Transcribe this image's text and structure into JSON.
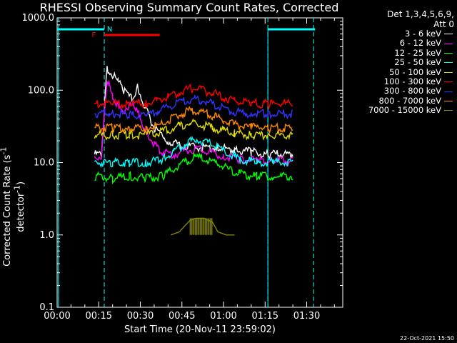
{
  "chart_data": {
    "type": "line",
    "title": "RHESSI Observing Summary Count Rates, Corrected",
    "detector_note": [
      "Det 1,3,4,5,6,9,",
      "Att 0"
    ],
    "xlabel": "Start Time (20-Nov-11 23:59:02)",
    "ylabel": "Corrected Count Rate (s",
    "ylabel_sup": "-1",
    "ylabel_tail": " detector",
    "ylabel_sup2": "-1",
    "ylabel_end": ")",
    "y_scale": "log",
    "ylim": [
      0.1,
      1000
    ],
    "xlim_minutes": [
      0,
      103
    ],
    "x_ticks": [
      {
        "min": 0,
        "label": "00:00"
      },
      {
        "min": 15,
        "label": "00:15"
      },
      {
        "min": 30,
        "label": "00:30"
      },
      {
        "min": 45,
        "label": "00:45"
      },
      {
        "min": 60,
        "label": "01:00"
      },
      {
        "min": 75,
        "label": "01:15"
      },
      {
        "min": 90,
        "label": "01:30"
      }
    ],
    "y_ticks": [
      {
        "v": 0.1,
        "label": "0.1"
      },
      {
        "v": 1,
        "label": "1.0"
      },
      {
        "v": 10,
        "label": "10.0"
      },
      {
        "v": 100,
        "label": "100.0"
      },
      {
        "v": 1000,
        "label": "1000.0"
      }
    ],
    "series": [
      {
        "name": "3 - 6 keV",
        "color": "#ffffff",
        "points": [
          [
            13.5,
            13
          ],
          [
            16,
            13
          ],
          [
            18,
            200
          ],
          [
            22,
            130
          ],
          [
            24,
            100
          ],
          [
            27,
            75
          ],
          [
            29,
            110
          ],
          [
            32,
            55
          ],
          [
            35,
            30
          ],
          [
            40,
            20
          ],
          [
            44,
            17
          ],
          [
            48,
            16.5
          ],
          [
            52,
            16
          ],
          [
            58,
            16
          ],
          [
            64,
            15
          ],
          [
            70,
            14
          ],
          [
            76,
            13
          ],
          [
            85,
            13
          ]
        ]
      },
      {
        "name": "6 - 12 keV",
        "color": "#ff00ff",
        "points": [
          [
            13.5,
            12
          ],
          [
            16,
            12
          ],
          [
            18,
            140
          ],
          [
            20,
            80
          ],
          [
            23,
            50
          ],
          [
            26,
            60
          ],
          [
            28,
            58
          ],
          [
            30,
            40
          ],
          [
            32,
            28
          ],
          [
            35,
            18
          ],
          [
            38,
            14
          ],
          [
            42,
            13
          ],
          [
            46,
            14.5
          ],
          [
            50,
            15.5
          ],
          [
            54,
            14.5
          ],
          [
            60,
            12
          ],
          [
            66,
            11
          ],
          [
            72,
            10.5
          ],
          [
            78,
            10.5
          ],
          [
            85,
            10.5
          ]
        ]
      },
      {
        "name": "12 - 25 keV",
        "color": "#00ff00",
        "points": [
          [
            13.5,
            6.5
          ],
          [
            20,
            6
          ],
          [
            26,
            6.5
          ],
          [
            32,
            6
          ],
          [
            38,
            6.5
          ],
          [
            42,
            8
          ],
          [
            46,
            10
          ],
          [
            50,
            12
          ],
          [
            54,
            11
          ],
          [
            58,
            9.5
          ],
          [
            62,
            8
          ],
          [
            66,
            7
          ],
          [
            72,
            6.5
          ],
          [
            78,
            6.5
          ],
          [
            85,
            6.5
          ]
        ]
      },
      {
        "name": "25 - 50 keV",
        "color": "#00ffff",
        "points": [
          [
            13.5,
            10
          ],
          [
            20,
            10
          ],
          [
            26,
            10
          ],
          [
            32,
            10
          ],
          [
            38,
            11
          ],
          [
            42,
            14
          ],
          [
            46,
            18
          ],
          [
            50,
            21
          ],
          [
            54,
            19
          ],
          [
            58,
            16
          ],
          [
            62,
            13
          ],
          [
            66,
            11
          ],
          [
            72,
            10
          ],
          [
            78,
            10
          ],
          [
            85,
            10
          ]
        ]
      },
      {
        "name": "50 - 100 keV",
        "color": "#dddd00",
        "points": [
          [
            13.5,
            24
          ],
          [
            20,
            24
          ],
          [
            26,
            24
          ],
          [
            32,
            24
          ],
          [
            36,
            26
          ],
          [
            40,
            28
          ],
          [
            44,
            32
          ],
          [
            48,
            35
          ],
          [
            52,
            33
          ],
          [
            56,
            30
          ],
          [
            60,
            27
          ],
          [
            64,
            25
          ],
          [
            70,
            24
          ],
          [
            76,
            24
          ],
          [
            85,
            24
          ]
        ]
      },
      {
        "name": "100 - 300 keV",
        "color": "#ff0000",
        "points": [
          [
            13.5,
            65
          ],
          [
            20,
            65
          ],
          [
            26,
            65
          ],
          [
            32,
            65
          ],
          [
            36,
            70
          ],
          [
            40,
            80
          ],
          [
            44,
            92
          ],
          [
            48,
            104
          ],
          [
            52,
            100
          ],
          [
            56,
            90
          ],
          [
            60,
            80
          ],
          [
            64,
            70
          ],
          [
            70,
            65
          ],
          [
            76,
            65
          ],
          [
            85,
            65
          ]
        ]
      },
      {
        "name": "300 - 800 keV",
        "color": "#3333ff",
        "points": [
          [
            13.5,
            48
          ],
          [
            20,
            48
          ],
          [
            26,
            46
          ],
          [
            32,
            45
          ],
          [
            36,
            50
          ],
          [
            40,
            58
          ],
          [
            44,
            67
          ],
          [
            48,
            75
          ],
          [
            52,
            72
          ],
          [
            56,
            64
          ],
          [
            60,
            56
          ],
          [
            64,
            50
          ],
          [
            70,
            48
          ],
          [
            76,
            47
          ],
          [
            85,
            47
          ]
        ]
      },
      {
        "name": "800 - 7000 keV",
        "color": "#ff8800",
        "points": [
          [
            13.5,
            30
          ],
          [
            20,
            30
          ],
          [
            26,
            30
          ],
          [
            32,
            30
          ],
          [
            36,
            32
          ],
          [
            40,
            38
          ],
          [
            44,
            46
          ],
          [
            48,
            52
          ],
          [
            52,
            50
          ],
          [
            56,
            44
          ],
          [
            60,
            38
          ],
          [
            64,
            33
          ],
          [
            70,
            31
          ],
          [
            76,
            30
          ],
          [
            85,
            30
          ]
        ]
      },
      {
        "name": "7000 - 15000 keV",
        "color": "#888800",
        "points": [
          [
            41,
            1
          ],
          [
            44,
            1.1
          ],
          [
            48,
            1.6
          ],
          [
            50,
            1.7
          ],
          [
            53,
            1.7
          ],
          [
            56,
            1.5
          ],
          [
            58,
            1.1
          ],
          [
            61,
            1
          ],
          [
            64,
            1
          ]
        ]
      }
    ],
    "annotations": [
      {
        "label": "F",
        "color": "#ff0000"
      },
      {
        "label": "N",
        "color": "#00ffff"
      }
    ],
    "flare_bar_minutes": [
      17,
      37
    ],
    "night_shading_minutes": [
      [
        0,
        17
      ],
      [
        76,
        93
      ]
    ],
    "saa_markers_minutes": [
      0.5,
      17,
      76,
      92.5
    ]
  },
  "labels": {
    "timestamp": "22-Oct-2021 15:50"
  }
}
